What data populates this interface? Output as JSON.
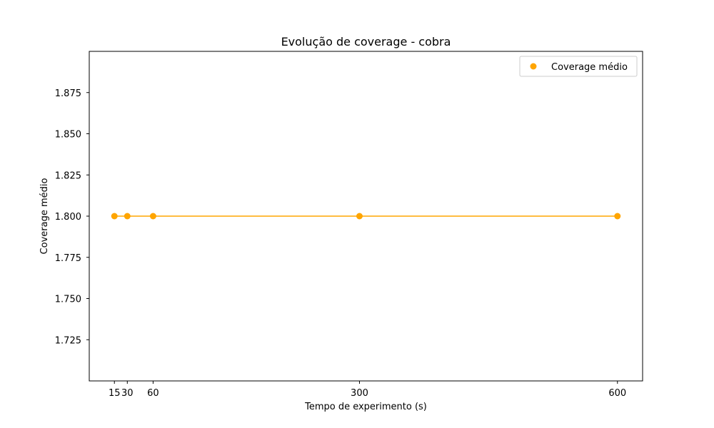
{
  "chart_data": {
    "type": "line",
    "title": "Evolução de coverage - cobra",
    "xlabel": "Tempo de experimento (s)",
    "ylabel": "Coverage médio",
    "x": [
      15,
      30,
      60,
      300,
      600
    ],
    "xticks": [
      "15",
      "30",
      "60",
      "300",
      "600"
    ],
    "yticks": [
      "1.725",
      "1.750",
      "1.775",
      "1.800",
      "1.825",
      "1.850",
      "1.875"
    ],
    "ytick_values": [
      1.725,
      1.75,
      1.775,
      1.8,
      1.825,
      1.85,
      1.875
    ],
    "xlim": [
      -14.25,
      629.25
    ],
    "ylim": [
      1.7,
      1.9
    ],
    "grid": false,
    "legend_position": "upper right",
    "series": [
      {
        "name": "Coverage médio",
        "values": [
          1.8,
          1.8,
          1.8,
          1.8,
          1.8
        ],
        "color": "#ffa500"
      }
    ]
  }
}
